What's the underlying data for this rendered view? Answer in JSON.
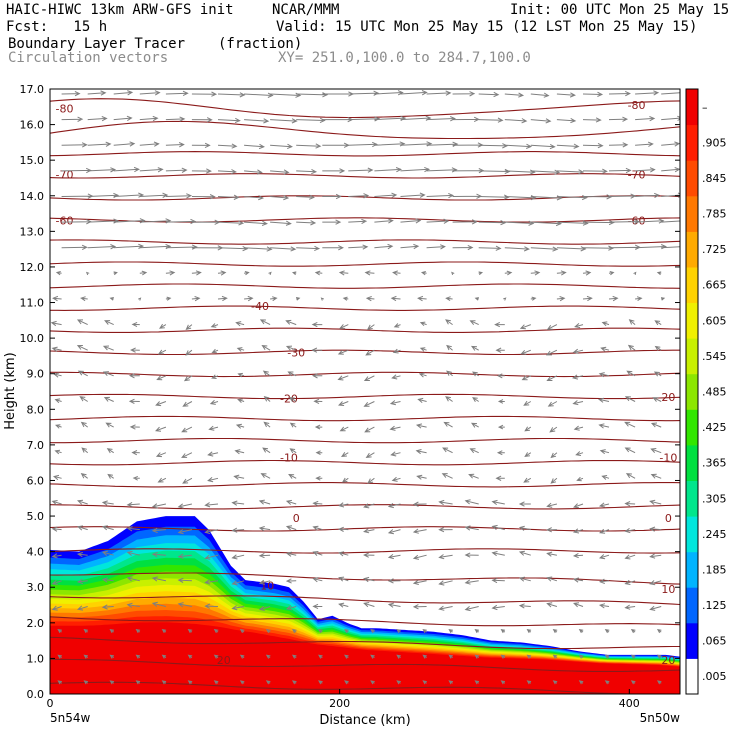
{
  "header": {
    "title": "HAIC-HIWC 13km ARW-GFS init",
    "center": "NCAR/MMM",
    "init": "Init: 00 UTC Mon 25 May 15",
    "fcst": "Fcst:   15 h",
    "valid": "Valid: 15 UTC Mon 25 May 15 (12 LST Mon 25 May 15)",
    "field_name": "Boundary Layer Tracer",
    "field_units": "(fraction)",
    "overlay_name": "Circulation vectors",
    "xy": "XY= 251.0,100.0 to 284.7,100.0"
  },
  "colors": {
    "contour": "#8b1a1a",
    "vector": "#7f7f7f",
    "tracer_scale": [
      "#ffffff",
      "#0000ff",
      "#0066ff",
      "#00b4ff",
      "#00e6dc",
      "#00e68c",
      "#00e040",
      "#32e600",
      "#8ce600",
      "#c8f000",
      "#f0f000",
      "#ffd200",
      "#ffaa00",
      "#ff7800",
      "#ff4b00",
      "#ff1e00",
      "#f00000"
    ]
  },
  "chart_data": {
    "type": "heatmap",
    "title": "Boundary Layer Tracer",
    "units": "(fraction)",
    "xlabel": "Distance (km)",
    "ylabel": "Height (km)",
    "xlim": [
      0,
      435
    ],
    "ylim": [
      0.0,
      17.0
    ],
    "x_ticks": [
      0,
      200,
      400
    ],
    "x_tick_labels": [
      "0",
      "200",
      "400"
    ],
    "y_ticks": [
      0.0,
      1.0,
      2.0,
      3.0,
      4.0,
      5.0,
      6.0,
      7.0,
      8.0,
      9.0,
      10.0,
      11.0,
      12.0,
      13.0,
      14.0,
      15.0,
      16.0,
      17.0
    ],
    "y_tick_labels": [
      "0.0",
      "1.0",
      "2.0",
      "3.0",
      "4.0",
      "5.0",
      "6.0",
      "7.0",
      "8.0",
      "9.0",
      "10.0",
      "11.0",
      "12.0",
      "13.0",
      "14.0",
      "15.0",
      "16.0",
      "17.0"
    ],
    "x_end_labels": [
      "5n54w",
      "5n50w"
    ],
    "colorbar_labels": [
      ".005",
      ".065",
      ".125",
      ".185",
      ".245",
      ".305",
      ".365",
      ".425",
      ".485",
      ".545",
      ".605",
      ".665",
      ".725",
      ".785",
      ".845",
      ".905",
      "–"
    ],
    "tracer_top": {
      "x": [
        0,
        20,
        40,
        60,
        80,
        100,
        110,
        125,
        135,
        145,
        155,
        165,
        175,
        185,
        195,
        205,
        215,
        225,
        245,
        265,
        285,
        305,
        325,
        345,
        365,
        385,
        405,
        425,
        435
      ],
      "height": [
        4.05,
        4.0,
        4.3,
        4.85,
        5.0,
        5.0,
        4.6,
        3.6,
        3.2,
        3.15,
        3.1,
        3.0,
        2.6,
        2.1,
        2.2,
        2.0,
        1.85,
        1.85,
        1.8,
        1.75,
        1.65,
        1.5,
        1.45,
        1.35,
        1.2,
        1.1,
        1.1,
        1.1,
        1.05
      ]
    },
    "core_top": {
      "x": [
        0,
        30,
        60,
        80,
        100,
        120,
        140,
        160,
        175,
        195,
        220,
        260,
        300,
        340,
        380,
        420,
        435
      ],
      "height": [
        1.8,
        1.8,
        1.85,
        1.85,
        1.8,
        1.75,
        1.65,
        1.5,
        1.4,
        1.3,
        1.2,
        1.1,
        1.0,
        0.95,
        0.85,
        0.8,
        0.75
      ]
    },
    "isotherms": [
      -80,
      -70,
      -60,
      -40,
      -30,
      -20,
      -10,
      0,
      10,
      20
    ],
    "isotherm_labels": [
      {
        "text": "-80",
        "x": 10,
        "y": 16.45
      },
      {
        "text": "-80",
        "x": 405,
        "y": 16.55
      },
      {
        "text": "-70",
        "x": 10,
        "y": 14.6
      },
      {
        "text": "-70",
        "x": 405,
        "y": 14.6
      },
      {
        "text": "-60",
        "x": 10,
        "y": 13.3
      },
      {
        "text": "-60",
        "x": 405,
        "y": 13.3
      },
      {
        "text": "-40",
        "x": 145,
        "y": 10.9
      },
      {
        "text": "-30",
        "x": 170,
        "y": 9.6
      },
      {
        "text": "-20",
        "x": 165,
        "y": 8.3
      },
      {
        "text": "20",
        "x": 445,
        "y": 8.35
      },
      {
        "text": "-10",
        "x": 165,
        "y": 6.65
      },
      {
        "text": "-10",
        "x": 440,
        "y": 6.65
      },
      {
        "text": "0",
        "x": 170,
        "y": 4.95
      },
      {
        "text": "0",
        "x": 440,
        "y": 4.95
      },
      {
        "text": "10",
        "x": 150,
        "y": 3.05
      },
      {
        "text": "10",
        "x": 430,
        "y": 2.95
      },
      {
        "text": "20",
        "x": 120,
        "y": 0.95
      },
      {
        "text": "20",
        "x": 435,
        "y": 0.95
      }
    ]
  }
}
